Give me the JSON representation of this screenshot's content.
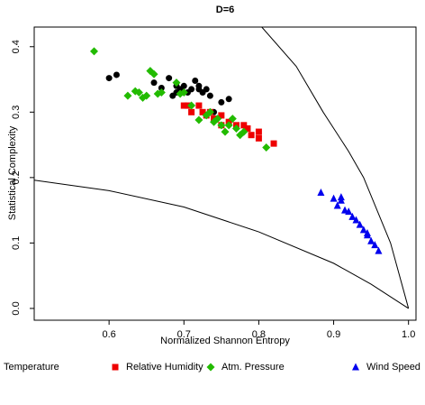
{
  "chart_data": {
    "type": "scatter",
    "title": "D=6",
    "x_label": "Normalized Shannon Entropy",
    "y_label": "Statistical Complexity",
    "xlim": [
      0.5,
      1.01
    ],
    "ylim": [
      -0.018,
      0.43
    ],
    "xticks": [
      0.6,
      0.7,
      0.8,
      0.9,
      {
        "value": 1,
        "label": "1.0"
      }
    ],
    "yticks": [
      {
        "value": 0,
        "label": "0.0"
      },
      0.1,
      0.2,
      0.3,
      0.4
    ],
    "lines": [
      {
        "color": "#000000",
        "x": [
          0.804,
          0.85,
          0.886,
          0.92,
          0.94,
          0.976,
          1.0
        ],
        "y": [
          0.43,
          0.37,
          0.3,
          0.24,
          0.2,
          0.1,
          0
        ]
      },
      {
        "color": "#000000",
        "x": [
          0.5,
          0.6,
          0.7,
          0.8,
          0.9,
          0.95,
          1.0
        ],
        "y": [
          0.196,
          0.18,
          0.155,
          0.117,
          0.069,
          0.037,
          0
        ]
      }
    ],
    "series": [
      {
        "name": "Temperature",
        "color": "#000000",
        "marker": "circle",
        "x": [
          0.6,
          0.61,
          0.66,
          0.67,
          0.68,
          0.685,
          0.69,
          0.695,
          0.7,
          0.705,
          0.71,
          0.715,
          0.72,
          0.725,
          0.73,
          0.735,
          0.75,
          0.76,
          0.74,
          0.72,
          0.69
        ],
        "values": [
          0.352,
          0.357,
          0.345,
          0.337,
          0.352,
          0.325,
          0.34,
          0.335,
          0.34,
          0.33,
          0.335,
          0.348,
          0.34,
          0.33,
          0.335,
          0.325,
          0.315,
          0.32,
          0.3,
          0.335,
          0.33
        ]
      },
      {
        "name": "Relative Humidity",
        "color": "#ee0000",
        "marker": "square",
        "x": [
          0.7,
          0.705,
          0.71,
          0.72,
          0.725,
          0.73,
          0.735,
          0.74,
          0.75,
          0.76,
          0.77,
          0.78,
          0.785,
          0.79,
          0.8,
          0.8,
          0.82,
          0.75
        ],
        "values": [
          0.31,
          0.31,
          0.3,
          0.31,
          0.3,
          0.295,
          0.3,
          0.29,
          0.295,
          0.285,
          0.28,
          0.28,
          0.275,
          0.265,
          0.27,
          0.26,
          0.252,
          0.28
        ]
      },
      {
        "name": "Atm. Pressure",
        "color": "#22bb00",
        "marker": "diamond",
        "x": [
          0.58,
          0.625,
          0.635,
          0.64,
          0.645,
          0.65,
          0.655,
          0.66,
          0.665,
          0.67,
          0.69,
          0.695,
          0.7,
          0.71,
          0.72,
          0.73,
          0.74,
          0.75,
          0.755,
          0.765,
          0.77,
          0.775,
          0.78,
          0.81,
          0.76,
          0.735,
          0.745
        ],
        "values": [
          0.393,
          0.325,
          0.332,
          0.33,
          0.322,
          0.325,
          0.363,
          0.358,
          0.328,
          0.33,
          0.345,
          0.328,
          0.33,
          0.31,
          0.288,
          0.295,
          0.285,
          0.28,
          0.27,
          0.29,
          0.275,
          0.265,
          0.27,
          0.246,
          0.28,
          0.3,
          0.29
        ]
      },
      {
        "name": "Wind Speed",
        "color": "#0000ee",
        "marker": "triangle",
        "x": [
          0.883,
          0.9,
          0.905,
          0.91,
          0.91,
          0.915,
          0.92,
          0.925,
          0.93,
          0.935,
          0.94,
          0.945,
          0.95,
          0.955,
          0.96,
          0.945
        ],
        "values": [
          0.177,
          0.168,
          0.157,
          0.17,
          0.165,
          0.15,
          0.148,
          0.14,
          0.135,
          0.128,
          0.12,
          0.112,
          0.103,
          0.097,
          0.088,
          0.115
        ]
      }
    ]
  }
}
